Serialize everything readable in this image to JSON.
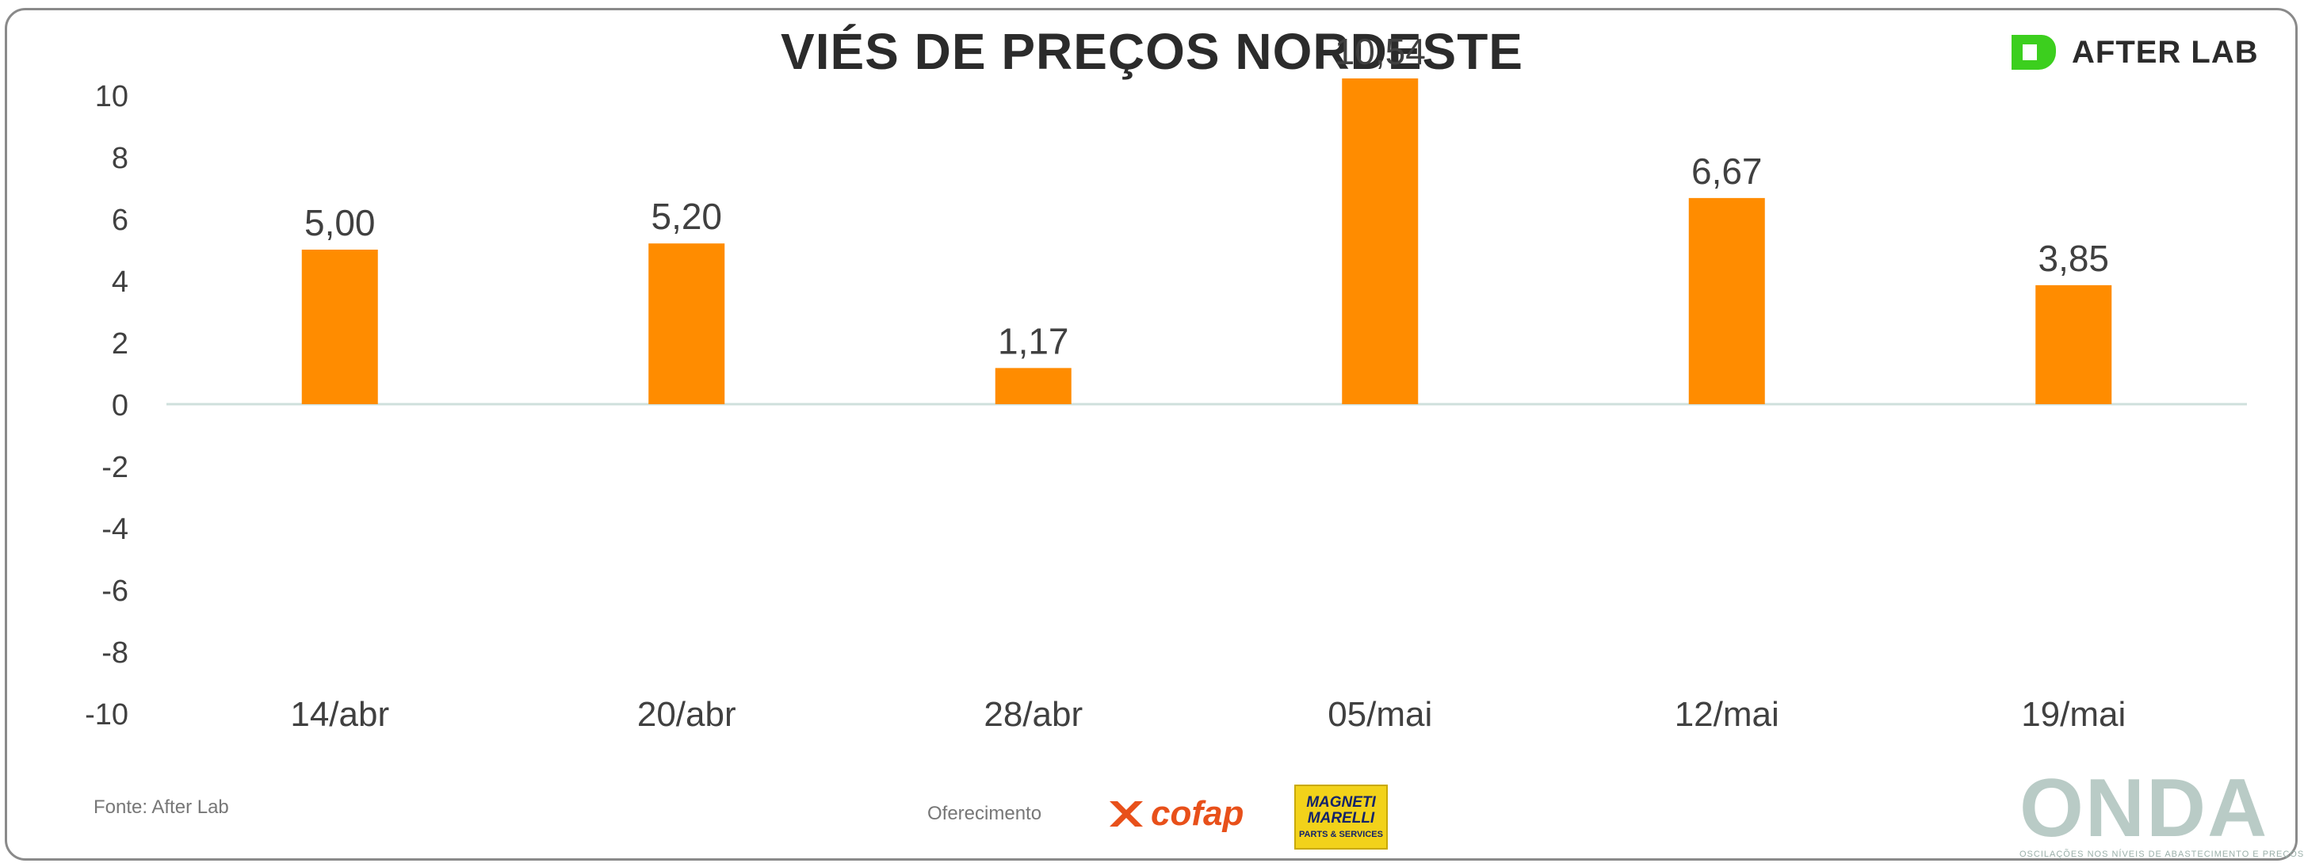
{
  "header": {
    "title": "VIÉS DE PREÇOS NORDESTE",
    "brand": "AFTER LAB"
  },
  "footer": {
    "source": "Fonte: After Lab",
    "sponsor_label": "Oferecimento",
    "sponsors": [
      "cofap",
      "MAGNETI MARELLI",
      "PARTS & SERVICES"
    ],
    "onda_logo": "ONDA",
    "onda_tagline": "OSCILAÇÕES NOS NÍVEIS DE ABASTECIMENTO E PREÇOS"
  },
  "colors": {
    "bar": "#ff8c00",
    "brand_green": "#3ccf1e",
    "axis": "#cfe0dc",
    "text": "#404040"
  },
  "chart_data": {
    "type": "bar",
    "title": "VIÉS DE PREÇOS NORDESTE",
    "categories": [
      "14/abr",
      "20/abr",
      "28/abr",
      "05/mai",
      "12/mai",
      "19/mai"
    ],
    "values": [
      5.0,
      5.2,
      1.17,
      10.54,
      6.67,
      3.85
    ],
    "value_labels": [
      "5,00",
      "5,20",
      "1,17",
      "10,54",
      "6,67",
      "3,85"
    ],
    "yticks": [
      10,
      8,
      6,
      4,
      2,
      0,
      -2,
      -4,
      -6,
      -8,
      -10
    ],
    "ylim": [
      -10,
      10
    ],
    "xlabel": "",
    "ylabel": "",
    "grid": false,
    "legend": "none"
  }
}
